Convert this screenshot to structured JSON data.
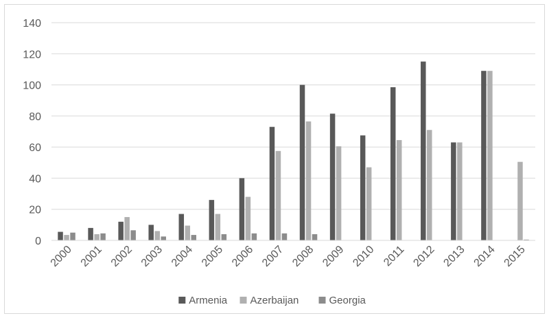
{
  "chart_data": {
    "type": "bar",
    "title": "",
    "xlabel": "",
    "ylabel": "",
    "ylim": [
      0,
      140
    ],
    "yticks": [
      0,
      20,
      40,
      60,
      80,
      100,
      120,
      140
    ],
    "grid": true,
    "legend_position": "bottom",
    "categories": [
      "2000",
      "2001",
      "2002",
      "2003",
      "2004",
      "2005",
      "2006",
      "2007",
      "2008",
      "2009",
      "2010",
      "2011",
      "2012",
      "2013",
      "2014",
      "2015"
    ],
    "series": [
      {
        "name": "Armenia",
        "color": "#595959",
        "values": [
          5.5,
          8,
          12,
          10,
          17,
          26,
          40,
          73,
          100,
          81.5,
          67.5,
          98.5,
          115,
          63,
          109,
          0
        ]
      },
      {
        "name": "Azerbaijan",
        "color": "#b0b0b0",
        "values": [
          3.5,
          4,
          15,
          6,
          9.5,
          17,
          28,
          57.5,
          76.5,
          60.5,
          47,
          64.5,
          71,
          63,
          109,
          50.5
        ]
      },
      {
        "name": "Georgia",
        "color": "#8c8c8c",
        "values": [
          5,
          4.5,
          6.5,
          2.5,
          3.5,
          4,
          4.5,
          4.5,
          4,
          0,
          0,
          0,
          0,
          0,
          0,
          0.5
        ]
      }
    ]
  }
}
